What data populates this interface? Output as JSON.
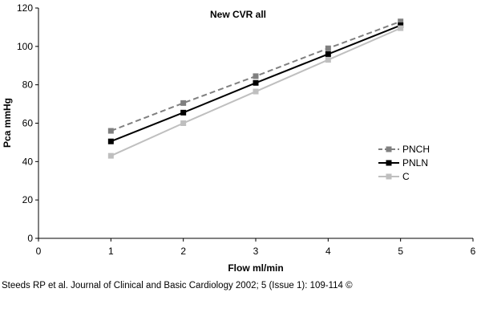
{
  "chart_data": {
    "type": "line",
    "title": "New CVR all",
    "xlabel": "Flow ml/min",
    "ylabel": "Pca mmHg",
    "xlim": [
      0,
      6
    ],
    "ylim": [
      0,
      120
    ],
    "xticks": [
      0,
      1,
      2,
      3,
      4,
      5,
      6
    ],
    "yticks": [
      0,
      20,
      40,
      60,
      80,
      100,
      120
    ],
    "grid": false,
    "legend_position": "right",
    "x": [
      1,
      2,
      3,
      4,
      5
    ],
    "series": [
      {
        "name": "PNCH",
        "values": [
          56,
          70.5,
          84.5,
          99,
          113
        ],
        "color": "#808080",
        "dash": "dashed",
        "marker": "square"
      },
      {
        "name": "PNLN",
        "values": [
          50.5,
          65.5,
          81,
          96,
          111
        ],
        "color": "#000000",
        "dash": "solid",
        "marker": "square"
      },
      {
        "name": "C",
        "values": [
          43,
          60,
          76.5,
          93,
          109.5
        ],
        "color": "#bfbfbf",
        "dash": "solid",
        "marker": "square"
      }
    ]
  },
  "caption": "Steeds RP et al. Journal of Clinical and Basic Cardiology 2002; 5 (Issue 1): 109-114 ©"
}
